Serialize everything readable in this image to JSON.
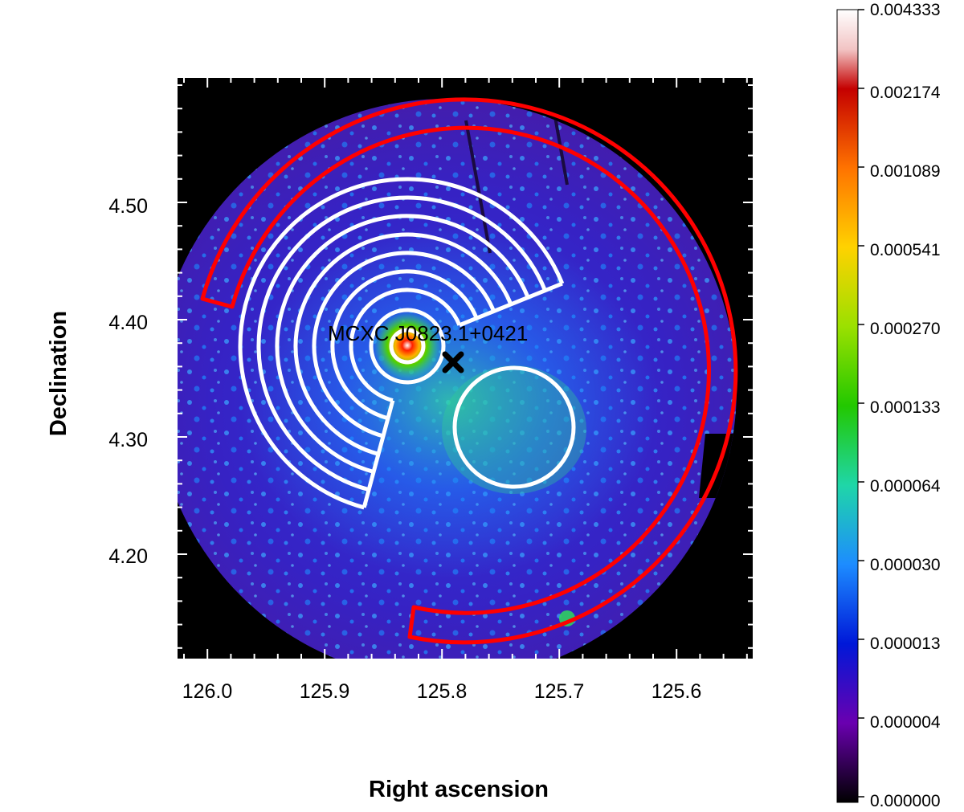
{
  "figure": {
    "source_label": "MCXC J0823.1+0421",
    "axes": {
      "x_title": "Right ascension",
      "y_title": "Declination",
      "x_ticks": [
        "126.0",
        "125.9",
        "125.8",
        "125.7",
        "125.6"
      ],
      "y_ticks": [
        "4.50",
        "4.40",
        "4.30",
        "4.20"
      ]
    },
    "colorbar": {
      "labels": [
        "0.004333",
        "0.002174",
        "0.001089",
        "0.000541",
        "0.000270",
        "0.000133",
        "0.000064",
        "0.000030",
        "0.000013",
        "0.000004",
        "0.000000"
      ],
      "colors": [
        "#ffffff",
        "#c40000",
        "#ff7300",
        "#ffd200",
        "#9be000",
        "#22c800",
        "#1fd6a8",
        "#1d8cff",
        "#0018d8",
        "#6a00b0",
        "#000000"
      ]
    },
    "colors": {
      "background": "#000000",
      "field": "#3a1eb4",
      "region_red": "#ff0000",
      "region_white": "#ffffff",
      "marker": "#000000"
    }
  }
}
